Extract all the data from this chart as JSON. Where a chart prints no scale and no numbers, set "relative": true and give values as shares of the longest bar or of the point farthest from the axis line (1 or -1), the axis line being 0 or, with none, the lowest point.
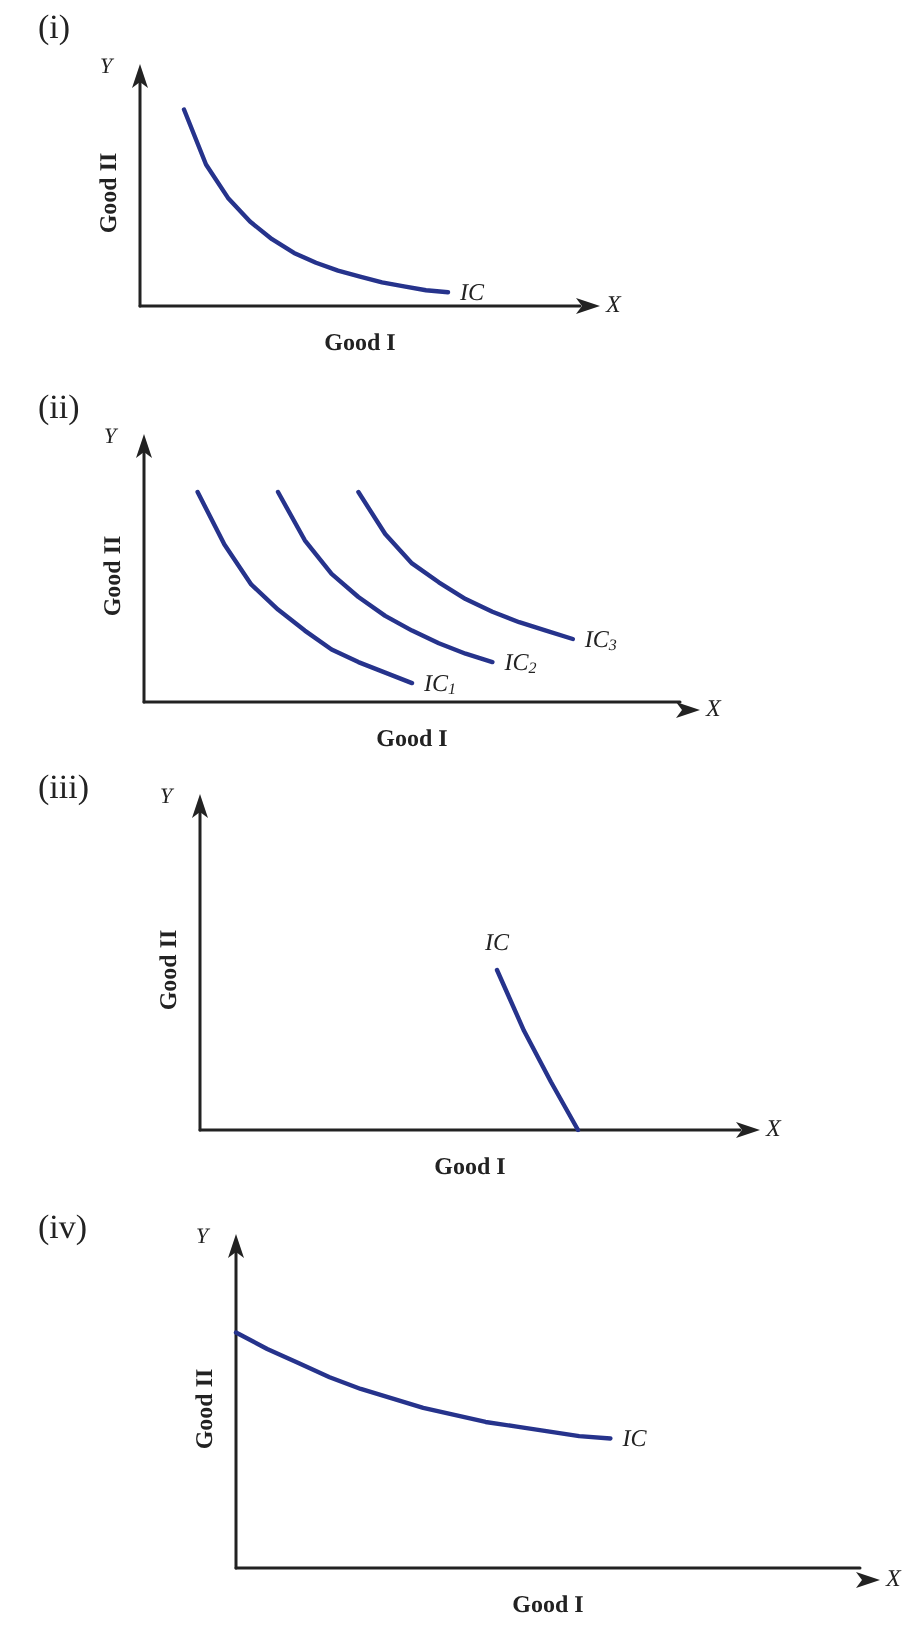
{
  "chart_data": [
    {
      "type": "line",
      "title": "(i)",
      "xlabel": "Good I",
      "ylabel": "Good II",
      "annotations": [
        "Y",
        "X"
      ],
      "relative": true,
      "tick_labels": false,
      "grid": false,
      "legend": false,
      "marker": "none",
      "line_style": "solid",
      "categories": [
        null,
        null,
        null,
        null,
        null,
        null,
        null,
        null,
        null,
        null,
        null,
        null,
        null,
        null,
        null,
        null,
        null,
        null,
        null,
        null,
        null
      ],
      "series": [
        {
          "name": "IC",
          "color": "#26338c",
          "values": [
            null,
            null,
            1.0,
            0.72,
            0.55,
            0.43,
            0.34,
            0.27,
            0.22,
            0.18,
            0.15,
            0.12,
            0.1,
            0.08,
            0.07,
            null,
            null,
            null,
            null,
            null,
            null
          ]
        }
      ]
    },
    {
      "type": "line",
      "title": "(ii)",
      "xlabel": "Good I",
      "ylabel": "Good II",
      "annotations": [
        "Y",
        "X"
      ],
      "relative": true,
      "tick_labels": false,
      "grid": false,
      "legend": false,
      "marker": "none",
      "line_style": "solid",
      "categories": [
        null,
        null,
        null,
        null,
        null,
        null,
        null,
        null,
        null,
        null,
        null,
        null,
        null,
        null,
        null,
        null,
        null,
        null,
        null,
        null,
        null
      ],
      "series": [
        {
          "name": "IC$_{1}$",
          "color": "#26338c",
          "values": [
            null,
            null,
            1.0,
            0.75,
            0.56,
            0.44,
            0.34,
            0.25,
            0.19,
            0.14,
            0.09,
            null,
            null,
            null,
            null,
            null,
            null,
            null,
            null,
            null,
            null
          ]
        },
        {
          "name": "IC$_{2}$",
          "color": "#26338c",
          "values": [
            null,
            null,
            null,
            null,
            null,
            1.0,
            0.77,
            0.61,
            0.5,
            0.41,
            0.34,
            0.28,
            0.23,
            0.19,
            null,
            null,
            null,
            null,
            null,
            null,
            null
          ]
        },
        {
          "name": "IC$_{3}$",
          "color": "#26338c",
          "values": [
            null,
            null,
            null,
            null,
            null,
            null,
            null,
            null,
            1.0,
            0.8,
            0.66,
            0.57,
            0.49,
            0.43,
            0.38,
            0.34,
            0.3,
            null,
            null,
            null,
            null
          ]
        }
      ]
    },
    {
      "type": "line",
      "title": "(iii)",
      "xlabel": "Good I",
      "ylabel": "Good II",
      "annotations": [
        "Y",
        "X"
      ],
      "relative": true,
      "tick_labels": false,
      "grid": false,
      "legend": false,
      "marker": "none",
      "line_style": "solid",
      "categories": [
        null,
        null,
        null,
        null,
        null,
        null,
        null,
        null,
        null,
        null,
        null,
        null,
        null,
        null,
        null,
        null,
        null,
        null,
        null,
        null,
        null
      ],
      "series": [
        {
          "name": "IC",
          "color": "#26338c",
          "values": [
            null,
            null,
            null,
            null,
            null,
            null,
            null,
            null,
            null,
            null,
            null,
            1.0,
            0.62,
            0.3,
            0,
            null,
            null,
            null,
            null,
            null,
            null
          ]
        }
      ]
    },
    {
      "type": "line",
      "title": "(iv)",
      "xlabel": "Good I",
      "ylabel": "Good II",
      "annotations": [
        "Y",
        "X"
      ],
      "relative": true,
      "tick_labels": false,
      "grid": false,
      "legend": false,
      "marker": "none",
      "line_style": "solid",
      "categories": [
        null,
        null,
        null,
        null,
        null,
        null,
        null,
        null,
        null,
        null,
        null,
        null,
        null,
        null,
        null,
        null,
        null,
        null,
        null,
        null,
        null
      ],
      "series": [
        {
          "name": "IC",
          "color": "#26338c",
          "values": [
            1.0,
            0.93,
            0.87,
            0.81,
            0.76,
            0.72,
            0.68,
            0.65,
            0.62,
            0.6,
            0.58,
            0.56,
            0.55,
            null,
            null,
            null,
            null,
            null,
            null,
            null,
            null
          ]
        }
      ]
    }
  ]
}
